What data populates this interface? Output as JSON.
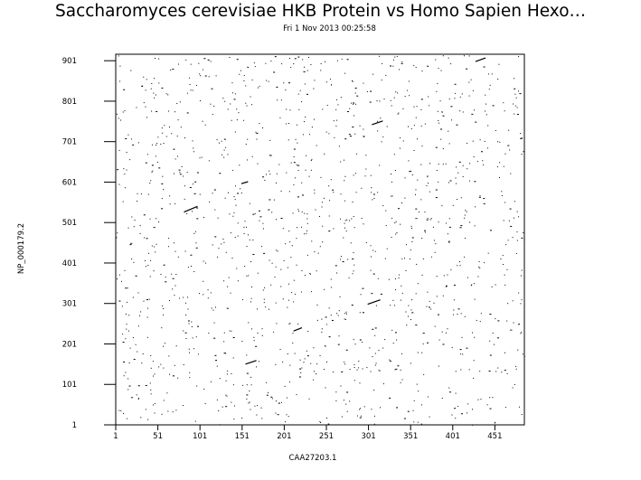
{
  "chart_data": {
    "type": "scatter",
    "title": "Saccharomyces cerevisiae HKB Protein vs Homo Sapien Hexo…",
    "subtitle": "Fri  1 Nov 2013 00:25:58",
    "xlabel": "CAA27203.1",
    "ylabel": "NP_000179.2",
    "xlim": [
      1,
      486
    ],
    "ylim": [
      1,
      917
    ],
    "x_ticks": [
      1,
      51,
      101,
      151,
      201,
      251,
      301,
      351,
      401,
      451
    ],
    "y_ticks": [
      1,
      101,
      201,
      301,
      401,
      501,
      601,
      701,
      801,
      901
    ],
    "grid": false,
    "diagonal_segments": [
      {
        "x": [
          82,
          98
        ],
        "y": [
          527,
          541
        ]
      },
      {
        "x": [
          150,
          158
        ],
        "y": [
          597,
          602
        ]
      },
      {
        "x": [
          155,
          168
        ],
        "y": [
          151,
          160
        ]
      },
      {
        "x": [
          212,
          222
        ],
        "y": [
          233,
          241
        ]
      },
      {
        "x": [
          300,
          315
        ],
        "y": [
          299,
          310
        ]
      },
      {
        "x": [
          305,
          318
        ],
        "y": [
          743,
          752
        ]
      },
      {
        "x": [
          428,
          440
        ],
        "y": [
          899,
          908
        ]
      }
    ],
    "dot_density": "random background matches, approx. 1400 points"
  }
}
